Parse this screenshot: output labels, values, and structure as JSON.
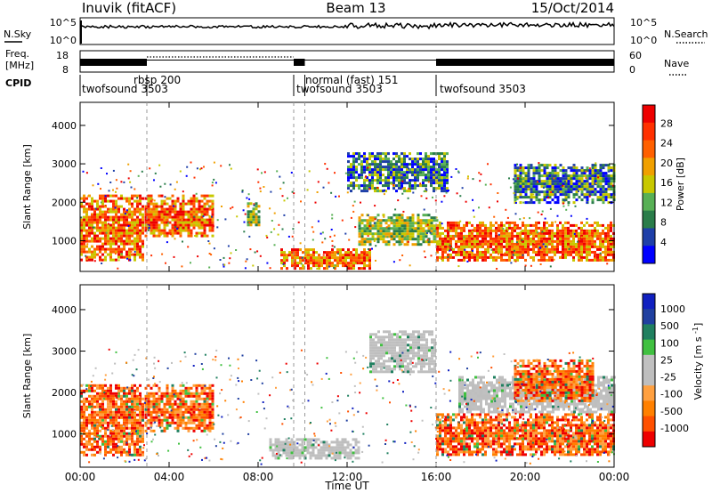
{
  "header": {
    "station": "Inuvik (fitACF)",
    "beam": "Beam 13",
    "date": "15/Oct/2014"
  },
  "status_panels": {
    "nsky_label": "N.Sky",
    "nsky_ticks": [
      "10^5",
      "10^0"
    ],
    "nsearch_label": "N.Search",
    "nsearch_ticks": [
      "10^5",
      "10^0"
    ],
    "freq_label_line1": "Freq.",
    "freq_label_line2": "[MHz]",
    "freq_ticks": [
      "18",
      "8"
    ],
    "nave_label": "Nave",
    "nave_ticks": [
      "60",
      "0"
    ],
    "cpid_label": "CPID"
  },
  "cpid_segments": [
    {
      "start_h": 0.0,
      "end_h": 3.0,
      "name": "twofsound",
      "id": "3503",
      "text": "twofsound 3503"
    },
    {
      "start_h": 3.0,
      "end_h": 9.6,
      "name": "rbsp",
      "id": "200",
      "text": "rbsp 200"
    },
    {
      "start_h": 9.6,
      "end_h": 10.1,
      "name": "twofsound",
      "id": "3503",
      "text": "twofsound 3503"
    },
    {
      "start_h": 10.1,
      "end_h": 16.0,
      "name": "normal (fast)",
      "id": "151",
      "text": "normal (fast) 151"
    },
    {
      "start_h": 16.0,
      "end_h": 24.0,
      "name": "twofsound",
      "id": "3503",
      "text": "twofsound 3503"
    }
  ],
  "colors": {
    "power_scale": [
      "#0000ff",
      "#1e3fa8",
      "#2a7d4a",
      "#58b055",
      "#c8c800",
      "#f0a000",
      "#ff6000",
      "#ff3000",
      "#ee0000"
    ],
    "velocity_scale": [
      "#ee0000",
      "#ff5000",
      "#ff8000",
      "#ffa040",
      "#bebebe",
      "#c0c0c0",
      "#40c040",
      "#208060",
      "#2040a0",
      "#1020c0"
    ]
  },
  "chart_data": [
    {
      "type": "heatmap",
      "name": "Power panel",
      "xlabel": "",
      "ylabel": "Slant Range [km]",
      "xlim": [
        0,
        24
      ],
      "ylim": [
        200,
        4600
      ],
      "yticks": [
        "1000",
        "2000",
        "3000",
        "4000"
      ],
      "colorbar_label": "Power [dB]",
      "colorbar_ticks": [
        "28",
        "24",
        "20",
        "16",
        "12",
        "8",
        "4"
      ],
      "features": [
        {
          "x_start_h": 0.0,
          "x_end_h": 2.8,
          "range_km": [
            500,
            2200
          ],
          "level": "high"
        },
        {
          "x_start_h": 2.9,
          "x_end_h": 6.0,
          "range_km": [
            1100,
            2200
          ],
          "level": "high"
        },
        {
          "x_start_h": 7.5,
          "x_end_h": 8.0,
          "range_km": [
            1400,
            2000
          ],
          "level": "mid"
        },
        {
          "x_start_h": 9.0,
          "x_end_h": 13.0,
          "range_km": [
            250,
            800
          ],
          "level": "high"
        },
        {
          "x_start_h": 12.5,
          "x_end_h": 16.0,
          "range_km": [
            900,
            1700
          ],
          "level": "mid"
        },
        {
          "x_start_h": 12.0,
          "x_end_h": 16.5,
          "range_km": [
            2300,
            3300
          ],
          "level": "low"
        },
        {
          "x_start_h": 16.0,
          "x_end_h": 24.0,
          "range_km": [
            500,
            1500
          ],
          "level": "high"
        },
        {
          "x_start_h": 19.5,
          "x_end_h": 24.0,
          "range_km": [
            2000,
            3000
          ],
          "level": "low"
        }
      ]
    },
    {
      "type": "heatmap",
      "name": "Velocity panel",
      "xlabel": "Time UT",
      "ylabel": "Slant Range [km]",
      "xlim": [
        0,
        24
      ],
      "ylim": [
        200,
        4600
      ],
      "xticks": [
        "00:00",
        "04:00",
        "08:00",
        "12:00",
        "16:00",
        "20:00",
        "00:00"
      ],
      "yticks": [
        "1000",
        "2000",
        "3000",
        "4000"
      ],
      "colorbar_label": "Velocity [m s",
      "colorbar_label_sup": "-1",
      "colorbar_label_end": "]",
      "colorbar_ticks": [
        "1000",
        "500",
        "100",
        "25",
        "-25",
        "-100",
        "-500",
        "-1000"
      ],
      "features": [
        {
          "x_start_h": 0.0,
          "x_end_h": 2.8,
          "range_km": [
            500,
            2200
          ],
          "level": "neg"
        },
        {
          "x_start_h": 2.9,
          "x_end_h": 6.0,
          "range_km": [
            1100,
            2200
          ],
          "level": "neg"
        },
        {
          "x_start_h": 8.5,
          "x_end_h": 12.5,
          "range_km": [
            400,
            900
          ],
          "level": "gray"
        },
        {
          "x_start_h": 13.0,
          "x_end_h": 16.0,
          "range_km": [
            2500,
            3500
          ],
          "level": "gray"
        },
        {
          "x_start_h": 16.0,
          "x_end_h": 24.0,
          "range_km": [
            500,
            1500
          ],
          "level": "neg"
        },
        {
          "x_start_h": 17.0,
          "x_end_h": 24.0,
          "range_km": [
            1500,
            2400
          ],
          "level": "gray"
        },
        {
          "x_start_h": 19.5,
          "x_end_h": 23.0,
          "range_km": [
            1800,
            2800
          ],
          "level": "neg"
        }
      ]
    }
  ]
}
